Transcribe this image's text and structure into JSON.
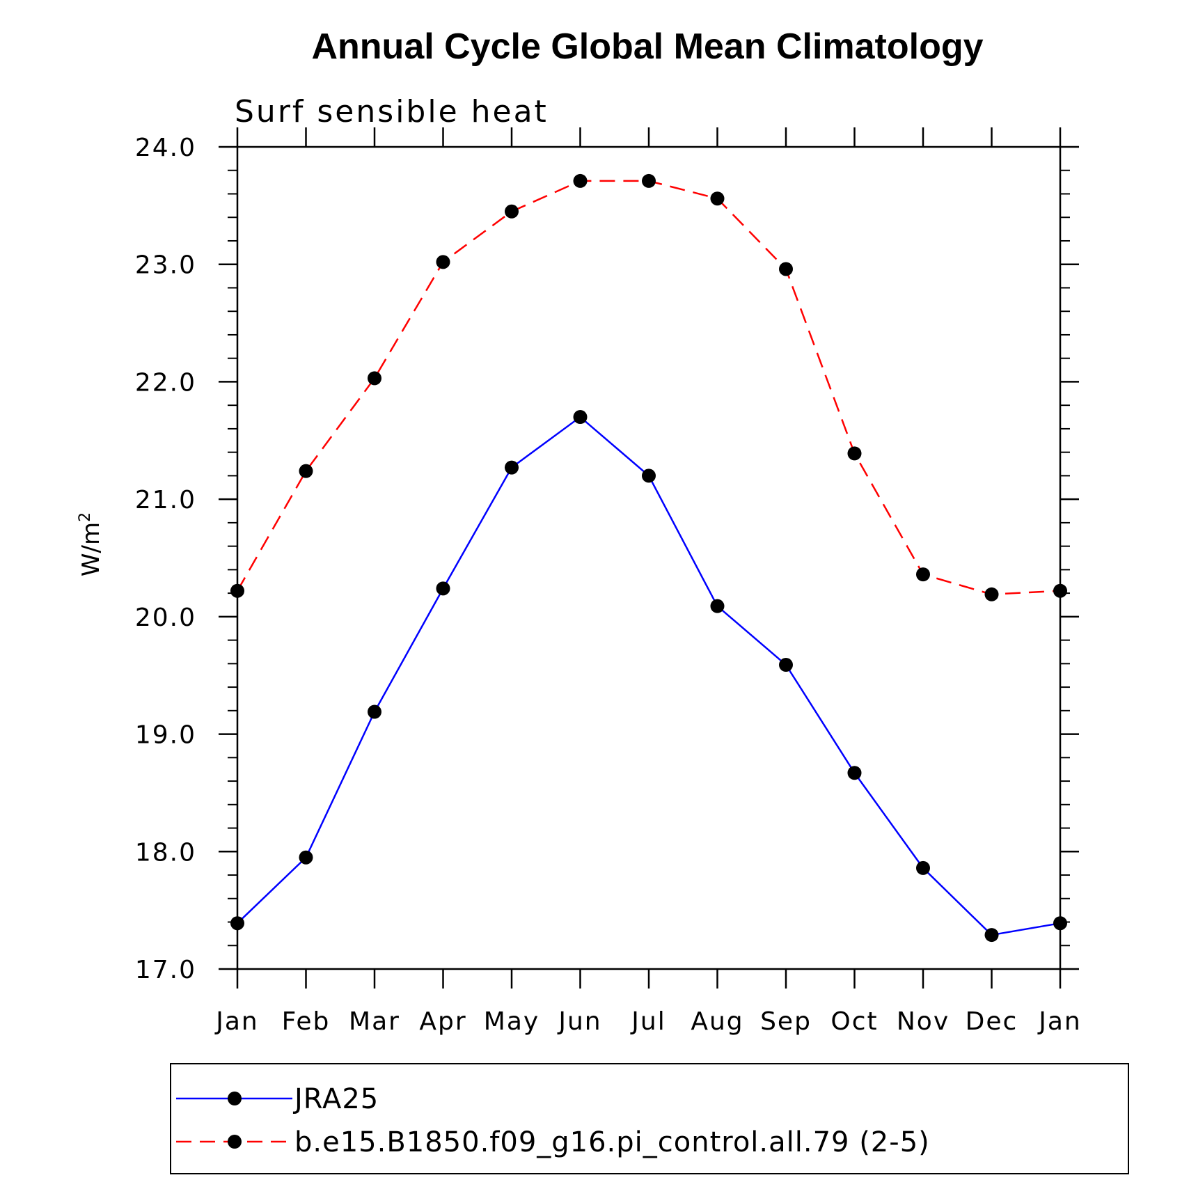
{
  "chart_data": {
    "type": "line",
    "title": "Annual Cycle Global Mean Climatology",
    "subtitle": "Surf sensible heat",
    "ylabel": "W/m",
    "ylabel_superscript": "2",
    "xlabel": "",
    "categories": [
      "Jan",
      "Feb",
      "Mar",
      "Apr",
      "May",
      "Jun",
      "Jul",
      "Aug",
      "Sep",
      "Oct",
      "Nov",
      "Dec",
      "Jan"
    ],
    "ylim": [
      17.0,
      24.0
    ],
    "yticks": [
      "17.0",
      "18.0",
      "19.0",
      "20.0",
      "21.0",
      "22.0",
      "23.0",
      "24.0"
    ],
    "grid": false,
    "legend_position": "bottom",
    "series": [
      {
        "name": "JRA25",
        "color": "#0000ff",
        "line_style": "solid",
        "marker": "filled-circle",
        "values": [
          17.39,
          17.95,
          19.19,
          20.24,
          21.27,
          21.7,
          21.2,
          20.09,
          19.59,
          18.67,
          17.86,
          17.29,
          17.39
        ]
      },
      {
        "name": "b.e15.B1850.f09_g16.pi_control.all.79 (2-5)",
        "color": "#ff0000",
        "line_style": "dashed",
        "marker": "filled-circle",
        "values": [
          20.22,
          21.24,
          22.03,
          23.02,
          23.45,
          23.71,
          23.71,
          23.56,
          22.96,
          21.39,
          20.36,
          20.19,
          20.22
        ]
      }
    ]
  }
}
